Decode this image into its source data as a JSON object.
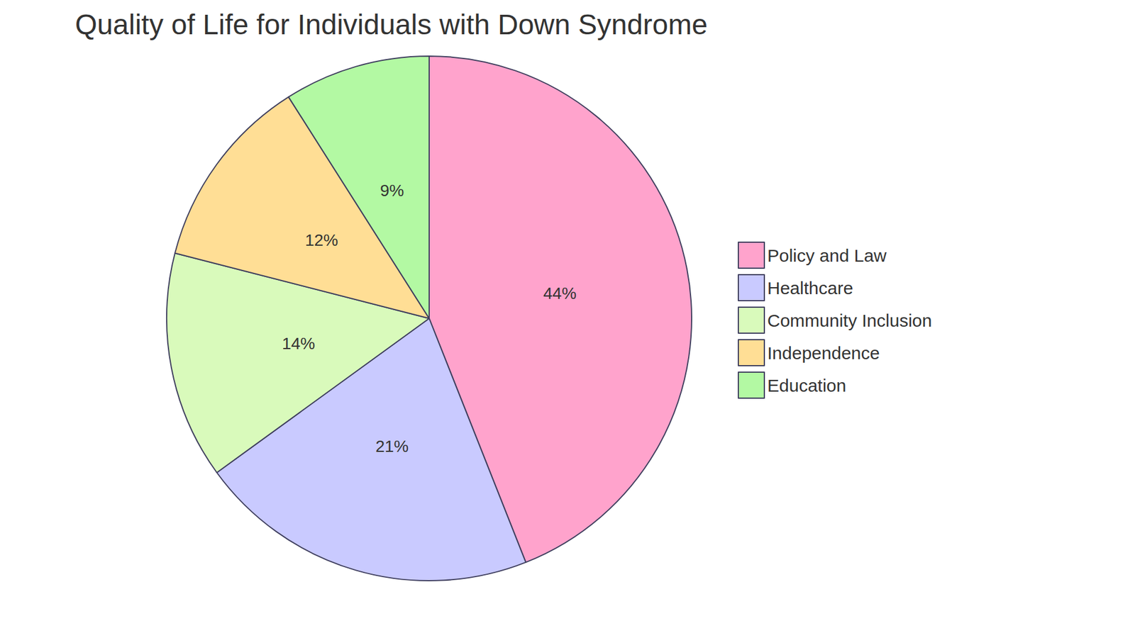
{
  "chart_data": {
    "type": "pie",
    "title": "Quality of Life for Individuals with Down Syndrome",
    "categories": [
      "Policy and Law",
      "Healthcare",
      "Community Inclusion",
      "Independence",
      "Education"
    ],
    "values": [
      44,
      21,
      14,
      12,
      9
    ],
    "value_labels": [
      "44%",
      "21%",
      "14%",
      "12%",
      "9%"
    ],
    "colors": [
      "#ffa3cc",
      "#c9caff",
      "#d9fabb",
      "#ffde95",
      "#b3f9a3"
    ],
    "data_labels": true,
    "legend": "right"
  }
}
